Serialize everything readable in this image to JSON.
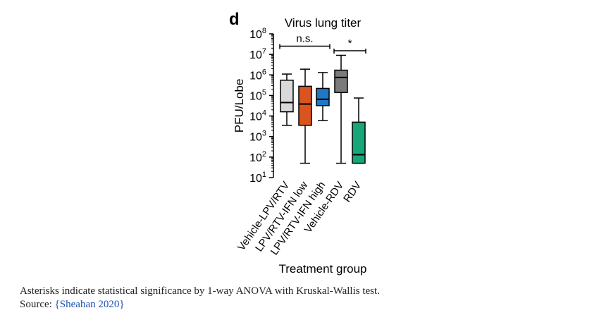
{
  "chart_data": {
    "type": "box",
    "panel_label": "d",
    "title": "Virus lung titer",
    "ylabel": "PFU/Lobe",
    "xlabel": "Treatment group",
    "y_scale": "log",
    "ylim": [
      10,
      100000000
    ],
    "y_ticks": [
      {
        "value": 10,
        "base": "10",
        "exp": "1"
      },
      {
        "value": 100,
        "base": "10",
        "exp": "2"
      },
      {
        "value": 1000,
        "base": "10",
        "exp": "3"
      },
      {
        "value": 10000,
        "base": "10",
        "exp": "4"
      },
      {
        "value": 100000,
        "base": "10",
        "exp": "5"
      },
      {
        "value": 1000000,
        "base": "10",
        "exp": "6"
      },
      {
        "value": 10000000,
        "base": "10",
        "exp": "7"
      },
      {
        "value": 100000000,
        "base": "10",
        "exp": "8"
      }
    ],
    "groups": [
      {
        "name": "Vehicle-LPV/RTV",
        "color": "#d9d9d9",
        "min": 3500,
        "q1": 16000,
        "median": 45000,
        "q3": 550000,
        "max": 1100000
      },
      {
        "name": "LPV/RTV-IFN low",
        "color": "#d9541e",
        "min": 50,
        "q1": 3500,
        "median": 38000,
        "q3": 280000,
        "max": 1900000
      },
      {
        "name": "LPV/RTV-IFN high",
        "color": "#1f78c1",
        "min": 6000,
        "q1": 32000,
        "median": 65000,
        "q3": 220000,
        "max": 1300000
      },
      {
        "name": "Vehicle-RDV",
        "color": "#7b7b7b",
        "min": 50,
        "q1": 140000,
        "median": 750000,
        "q3": 1700000,
        "max": 9000000
      },
      {
        "name": "RDV",
        "color": "#17a57a",
        "min": 50,
        "q1": 50,
        "median": 130,
        "q3": 5000,
        "max": 75000
      }
    ],
    "annotations": [
      {
        "text": "n.s.",
        "from_group": 0,
        "to_group": 2,
        "y": 25000000
      },
      {
        "text": "*",
        "from_group": 3,
        "to_group": 4,
        "y": 15000000
      }
    ]
  },
  "caption": {
    "text": "Asterisks indicate statistical significance by 1-way ANOVA with Kruskal-Wallis test.",
    "source_prefix": "Source: ",
    "brace_open": "{",
    "source_link": "Sheahan 2020",
    "brace_close": "}"
  }
}
